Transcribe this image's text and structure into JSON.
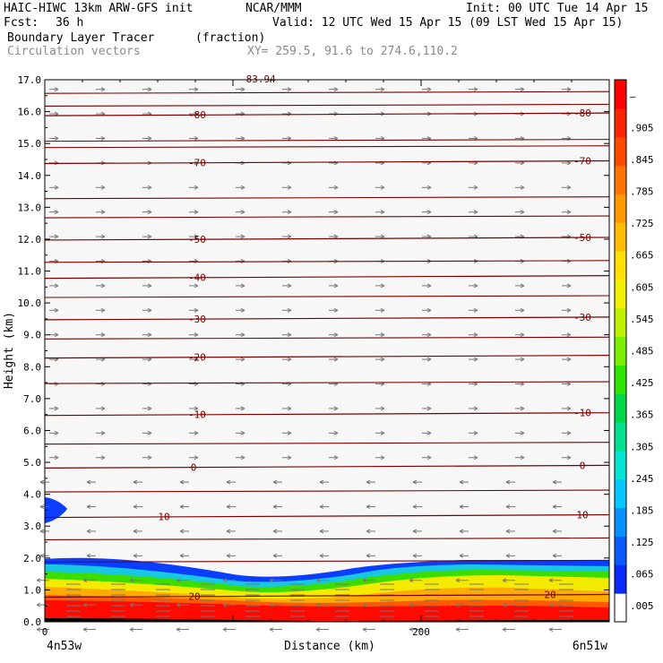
{
  "header": {
    "model": "HAIC-HIWC 13km ARW-GFS init",
    "institution": "NCAR/MMM",
    "init": "Init: 00 UTC Tue 14 Apr 15",
    "fcst_label": "Fcst:",
    "fcst_value": "36 h",
    "valid": "Valid: 12 UTC Wed 15 Apr 15 (09 LST Wed 15 Apr 15)",
    "field_name": "Boundary Layer Tracer",
    "field_units": "(fraction)",
    "vector_label": "Circulation vectors",
    "xy_range": "XY= 259.5, 91.6 to 274.6,110.2"
  },
  "axes": {
    "ylabel": "Height (km)",
    "xlabel": "Distance (km)",
    "x_left_label": "4n53w",
    "x_right_label": "6n51w"
  },
  "colors": {
    "contour": "#7a0000",
    "vector": "#777777",
    "colorbar": [
      "#ffffff",
      "#0b28ff",
      "#0a5bff",
      "#0791ff",
      "#04c8ff",
      "#00e6d2",
      "#00e08f",
      "#00d84a",
      "#2ee600",
      "#7af000",
      "#bef000",
      "#f2f000",
      "#ffe000",
      "#ffbf00",
      "#ff9b00",
      "#ff7400",
      "#ff4a00",
      "#ff2400",
      "#ff0000"
    ]
  },
  "chart_data": {
    "type": "contour",
    "title": "Boundary Layer Tracer",
    "units": "(fraction)",
    "overlay": "Circulation vectors",
    "xlabel": "Distance (km)",
    "ylabel": "Height (km)",
    "xlim": [
      0,
      300
    ],
    "ylim": [
      0,
      17
    ],
    "x_ticks": [
      0,
      200
    ],
    "y_ticks": [
      "0.0",
      "1.0",
      "2.0",
      "3.0",
      "4.0",
      "5.0",
      "6.0",
      "7.0",
      "8.0",
      "9.0",
      "10.0",
      "11.0",
      "12.0",
      "13.0",
      "14.0",
      "15.0",
      "16.0",
      "17.0"
    ],
    "colorbar_ticks": [
      ".005",
      ".065",
      ".125",
      ".185",
      ".245",
      ".305",
      ".365",
      ".425",
      ".485",
      ".545",
      ".605",
      ".665",
      ".725",
      ".785",
      ".845",
      ".905",
      "–"
    ],
    "temperature_contours": [
      {
        "label": "20",
        "height_km": 0.8
      },
      {
        "label": "10",
        "height_km": 3.3
      },
      {
        "label": "0",
        "height_km": 4.85
      },
      {
        "label": "-10",
        "height_km": 6.5
      },
      {
        "label": "-20",
        "height_km": 8.3
      },
      {
        "label": "-30",
        "height_km": 9.5
      },
      {
        "label": "-40",
        "height_km": 10.8
      },
      {
        "label": "-50",
        "height_km": 12.0
      },
      {
        "label": "-70",
        "height_km": 14.4
      },
      {
        "label": "-80",
        "height_km": 15.9
      }
    ],
    "top_annotation": "-83.94"
  }
}
